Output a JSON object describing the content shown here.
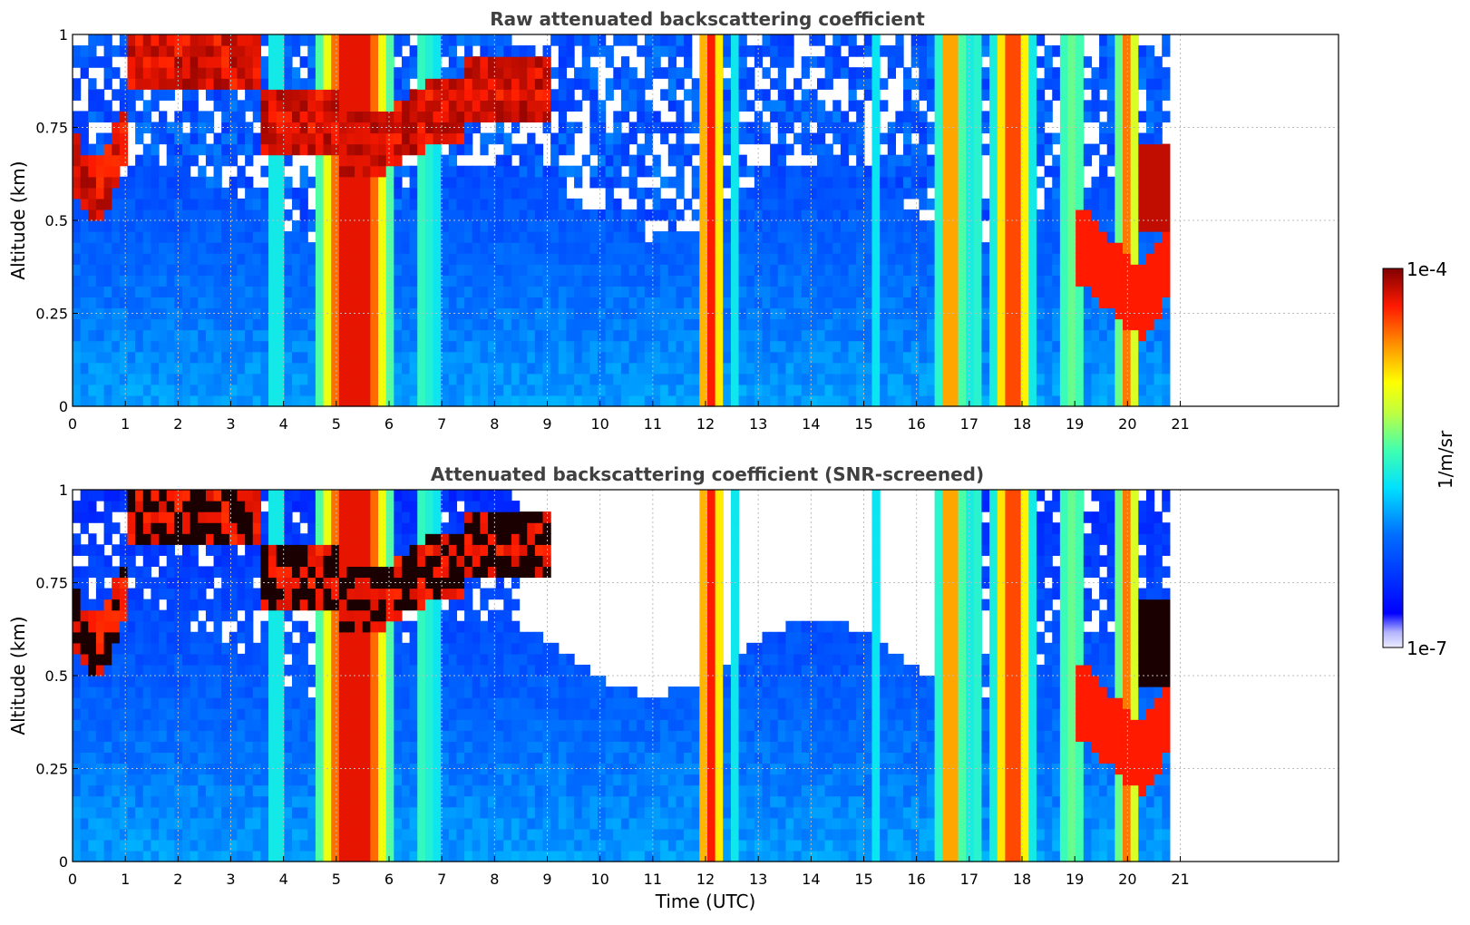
{
  "chart_data": [
    {
      "type": "heatmap",
      "title": "Raw attenuated backscattering coefficient",
      "xlabel": "",
      "ylabel": "Altitude (km)",
      "xlim": [
        0,
        24
      ],
      "ylim": [
        0,
        1
      ],
      "data_extent_x": [
        0,
        20.8
      ],
      "xticks": [
        "0",
        "1",
        "2",
        "3",
        "4",
        "5",
        "6",
        "7",
        "8",
        "9",
        "10",
        "11",
        "12",
        "13",
        "14",
        "15",
        "16",
        "17",
        "18",
        "19",
        "20",
        "21"
      ],
      "yticks": [
        "0",
        "0.25",
        "0.5",
        "0.75",
        "1"
      ],
      "grid": true,
      "screened": false
    },
    {
      "type": "heatmap",
      "title": "Attenuated backscattering coefficient (SNR-screened)",
      "xlabel": "Time (UTC)",
      "ylabel": "Altitude (km)",
      "xlim": [
        0,
        24
      ],
      "ylim": [
        0,
        1
      ],
      "data_extent_x": [
        0,
        20.8
      ],
      "xticks": [
        "0",
        "1",
        "2",
        "3",
        "4",
        "5",
        "6",
        "7",
        "8",
        "9",
        "10",
        "11",
        "12",
        "13",
        "14",
        "15",
        "16",
        "17",
        "18",
        "19",
        "20",
        "21"
      ],
      "yticks": [
        "0",
        "0.25",
        "0.5",
        "0.75",
        "1"
      ],
      "grid": true,
      "screened": true
    }
  ],
  "colorbar": {
    "label": "1/m/sr",
    "max_label": "1e-4",
    "min_label": "1e-7",
    "scale": "log",
    "range": [
      1e-07,
      0.0001
    ]
  },
  "colors": {
    "grid": "#bdbdbd",
    "title": "#404040"
  }
}
